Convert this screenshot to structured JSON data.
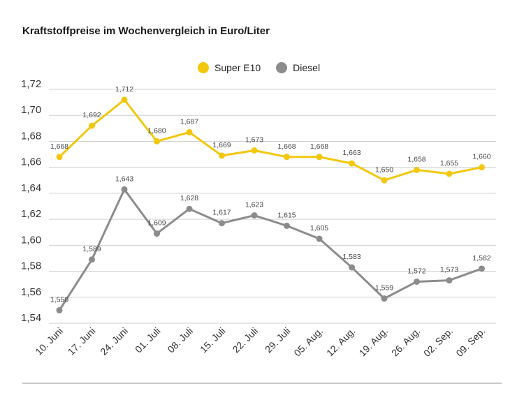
{
  "title": "Kraftstoffpreise im Wochenvergleich in Euro/Liter",
  "colors": {
    "super": "#f2c80f",
    "diesel": "#8c8c8c",
    "grid": "#cfcfcf",
    "text": "#333333"
  },
  "chart_data": {
    "type": "line",
    "title": "Kraftstoffpreise im Wochenvergleich in Euro/Liter",
    "categories": [
      "10. Juni",
      "17. Juni",
      "24. Juni",
      "01. Juli",
      "08. Juli",
      "15. Juli",
      "22. Juli",
      "29. Juli",
      "05. Aug.",
      "12. Aug.",
      "19. Aug.",
      "26. Aug.",
      "02. Sep.",
      "09. Sep."
    ],
    "series": [
      {
        "name": "Super E10",
        "color": "#f2c80f",
        "values": [
          1.668,
          1.692,
          1.712,
          1.68,
          1.687,
          1.669,
          1.673,
          1.668,
          1.668,
          1.663,
          1.65,
          1.658,
          1.655,
          1.66
        ],
        "labels": [
          "1,668",
          "1,692",
          "1,712",
          "1,680",
          "1,687",
          "1,669",
          "1,673",
          "1,668",
          "1,668",
          "1,663",
          "1,650",
          "1,658",
          "1,655",
          "1,660"
        ]
      },
      {
        "name": "Diesel",
        "color": "#8c8c8c",
        "values": [
          1.55,
          1.589,
          1.643,
          1.609,
          1.628,
          1.617,
          1.623,
          1.615,
          1.605,
          1.583,
          1.559,
          1.572,
          1.573,
          1.582
        ],
        "labels": [
          "1,550",
          "1,589",
          "1,643",
          "1,609",
          "1,628",
          "1,617",
          "1,623",
          "1,615",
          "1,605",
          "1,583",
          "1,559",
          "1,572",
          "1,573",
          "1,582"
        ]
      }
    ],
    "yticks": [
      "1,54",
      "1,56",
      "1,58",
      "1,60",
      "1,62",
      "1,64",
      "1,66",
      "1,68",
      "1,70",
      "1,72"
    ],
    "ylim": [
      1.54,
      1.72
    ],
    "grid": true,
    "legend_position": "top-center"
  }
}
